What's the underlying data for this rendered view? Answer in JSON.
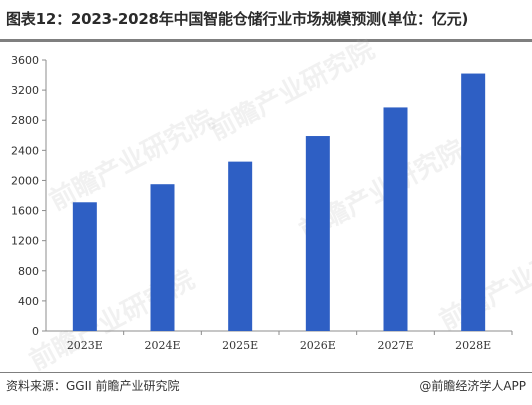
{
  "title": "图表12：2023-2028年中国智能仓储行业市场规模预测(单位：亿元)",
  "footer": {
    "source": "资料来源：GGII 前瞻产业研究院",
    "credit": "@前瞻经济学人APP"
  },
  "watermark": "前瞻产业研究院",
  "colors": {
    "bar": "#2e5fc4",
    "axis": "#8c8c8c",
    "text": "#333333"
  },
  "chart_data": {
    "type": "bar",
    "categories": [
      "2023E",
      "2024E",
      "2025E",
      "2026E",
      "2027E",
      "2028E"
    ],
    "values": [
      1710,
      1950,
      2250,
      2590,
      2970,
      3420
    ],
    "title": "图表12：2023-2028年中国智能仓储行业市场规模预测(单位：亿元)",
    "xlabel": "",
    "ylabel": "",
    "ylim": [
      0,
      3600
    ],
    "yticks": [
      0,
      400,
      800,
      1200,
      1600,
      2000,
      2400,
      2800,
      3200,
      3600
    ],
    "grid": false,
    "legend": "none"
  }
}
